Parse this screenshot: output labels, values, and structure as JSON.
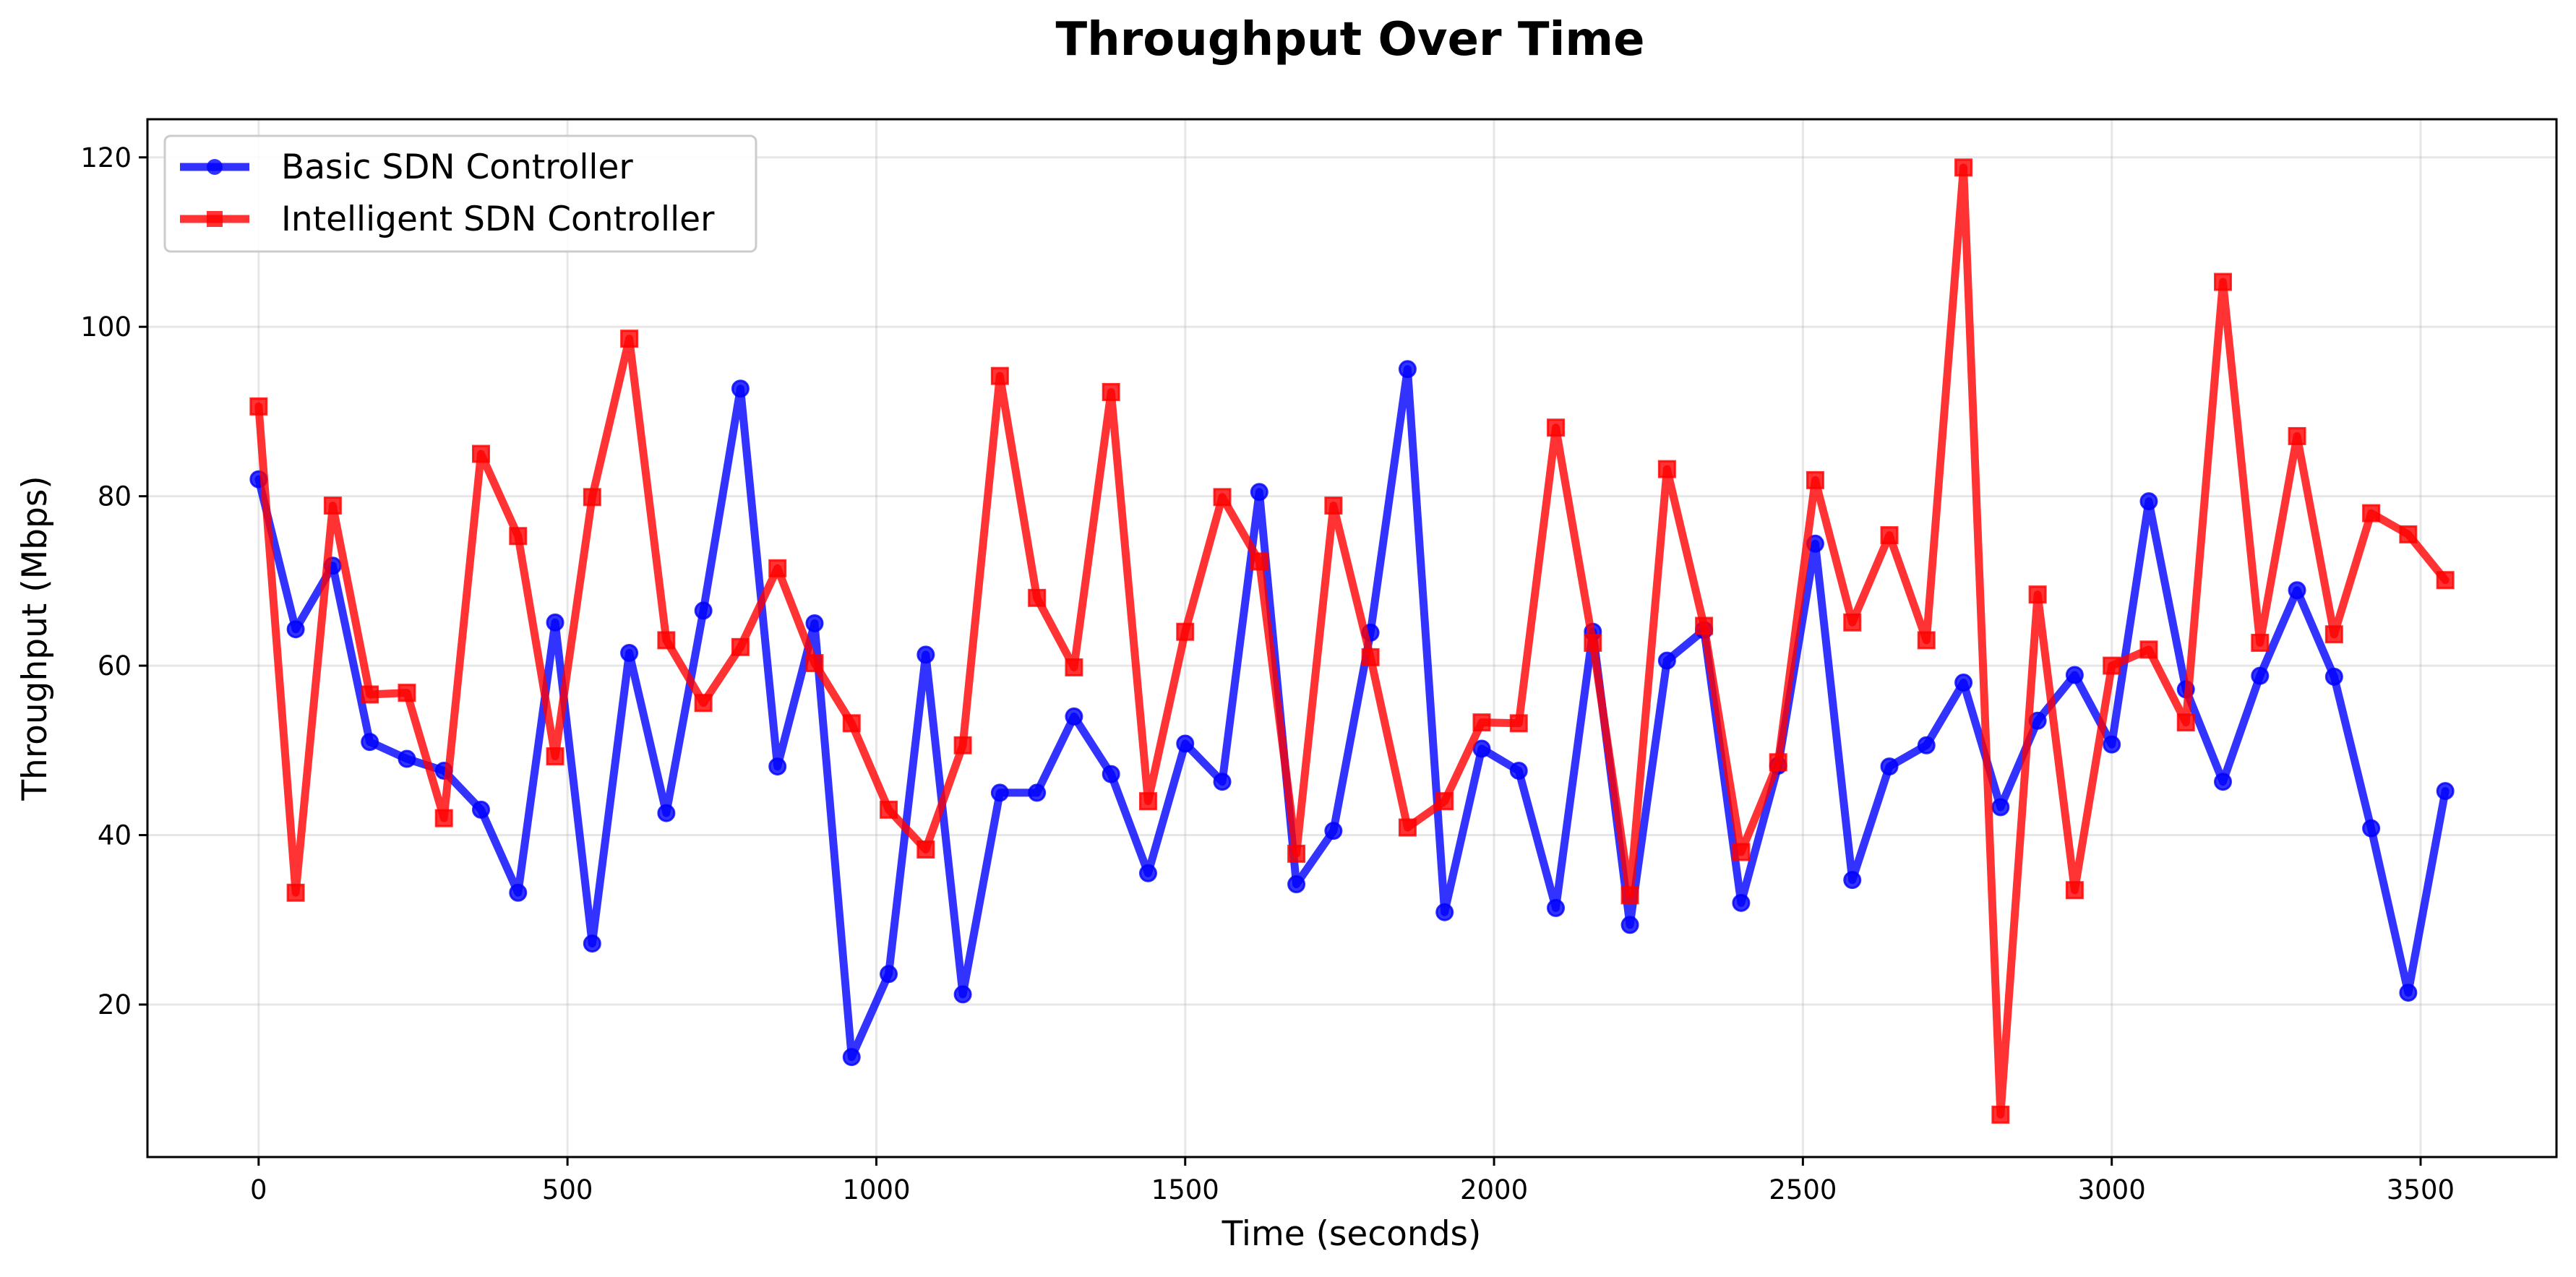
{
  "chart_data": {
    "type": "line",
    "title": "Throughput Over Time",
    "xlabel": "Time (seconds)",
    "ylabel": "Throughput (Mbps)",
    "xlim": [
      -180,
      3720
    ],
    "ylim": [
      2,
      124.5
    ],
    "xticks": [
      0,
      500,
      1000,
      1500,
      2000,
      2500,
      3000,
      3500
    ],
    "yticks": [
      20,
      40,
      60,
      80,
      100,
      120
    ],
    "grid": true,
    "legend_position": "top-left",
    "x": [
      0,
      60,
      120,
      180,
      240,
      300,
      360,
      420,
      480,
      540,
      600,
      660,
      720,
      780,
      840,
      900,
      960,
      1020,
      1080,
      1140,
      1200,
      1260,
      1320,
      1380,
      1440,
      1500,
      1560,
      1620,
      1680,
      1740,
      1800,
      1860,
      1920,
      1980,
      2040,
      2100,
      2160,
      2220,
      2280,
      2340,
      2400,
      2460,
      2520,
      2580,
      2640,
      2700,
      2760,
      2820,
      2880,
      2940,
      3000,
      3060,
      3120,
      3180,
      3240,
      3300,
      3360,
      3420,
      3480,
      3540
    ],
    "series": [
      {
        "name": "Basic SDN Controller",
        "color": "#0000ff",
        "marker": "circle",
        "values": [
          82,
          64.3,
          71.8,
          51,
          49,
          47.6,
          43,
          33.2,
          65.1,
          27.2,
          61.5,
          42.6,
          66.5,
          92.7,
          48.1,
          65,
          13.8,
          23.6,
          61.3,
          21.2,
          45,
          45,
          54,
          47.2,
          35.5,
          50.8,
          46.3,
          80.5,
          34.2,
          40.5,
          63.9,
          95,
          30.9,
          50.2,
          47.6,
          31.4,
          64,
          29.4,
          60.6,
          64.2,
          32,
          48.2,
          74.4,
          34.7,
          48.1,
          50.6,
          58,
          43.3,
          53.5,
          58.9,
          50.7,
          79.4,
          57.2,
          46.3,
          58.8,
          68.9,
          58.7,
          40.8,
          21.4,
          45.2
        ]
      },
      {
        "name": "Intelligent SDN Controller",
        "color": "#ff0000",
        "marker": "square",
        "values": [
          90.6,
          33.2,
          78.9,
          56.6,
          56.8,
          42,
          85,
          75.3,
          49.3,
          79.9,
          98.6,
          63,
          55.6,
          62.2,
          71.5,
          60.3,
          53.2,
          43,
          38.3,
          50.6,
          94.2,
          68,
          59.8,
          92.3,
          44,
          64,
          79.9,
          72.3,
          37.8,
          78.9,
          61,
          40.9,
          44,
          53.3,
          53.2,
          88.1,
          62.7,
          32.9,
          83.2,
          64.7,
          38,
          48.6,
          81.9,
          65.1,
          75.4,
          63,
          118.8,
          7,
          68.4,
          33.5,
          60,
          61.9,
          53.3,
          105.3,
          62.7,
          87.1,
          63.7,
          78,
          75.5,
          70.1
        ]
      }
    ]
  }
}
